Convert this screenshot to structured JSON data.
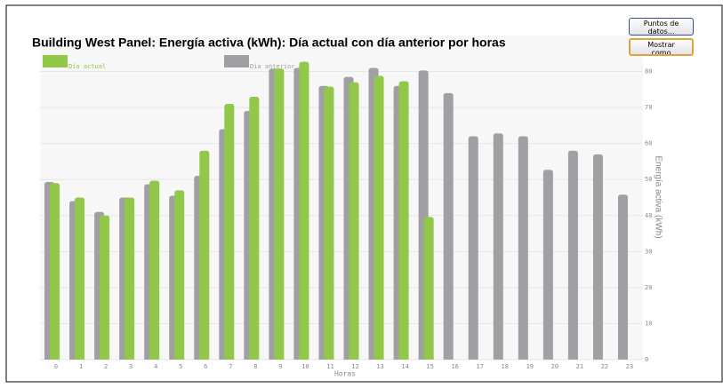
{
  "chart_data": {
    "type": "bar",
    "title": "Building West Panel: Energía activa (kWh): Día actual con día anterior por horas",
    "x_label": "Horas",
    "y_label": "Energía activa (kWh)",
    "categories": [
      "0",
      "1",
      "2",
      "3",
      "4",
      "5",
      "6",
      "7",
      "8",
      "9",
      "10",
      "11",
      "12",
      "13",
      "14",
      "15",
      "16",
      "17",
      "18",
      "19",
      "20",
      "21",
      "22",
      "23"
    ],
    "series": [
      {
        "name": "Día anterior",
        "color": "#a09fa4",
        "values": [
          49.3,
          44,
          41,
          45,
          48.7,
          45.5,
          51,
          64,
          69,
          80.8,
          81,
          76,
          78.5,
          81,
          76,
          80.3,
          74,
          62,
          62.8,
          62,
          52.7,
          58,
          57,
          45.8
        ]
      },
      {
        "name": "Día actual",
        "color": "#92c84a",
        "values": [
          49,
          45,
          40,
          45,
          49.7,
          47,
          58,
          71,
          73,
          80.8,
          82.7,
          75.8,
          77,
          78.8,
          77.3,
          39.6,
          null,
          null,
          null,
          null,
          null,
          null,
          null,
          null
        ]
      }
    ],
    "ylim": [
      0,
      90
    ],
    "yticks": [
      0,
      10,
      20,
      30,
      40,
      50,
      60,
      70,
      80
    ],
    "grid": true
  },
  "buttons": [
    "Mostrar como imagen...",
    "Puntos de datos..."
  ]
}
